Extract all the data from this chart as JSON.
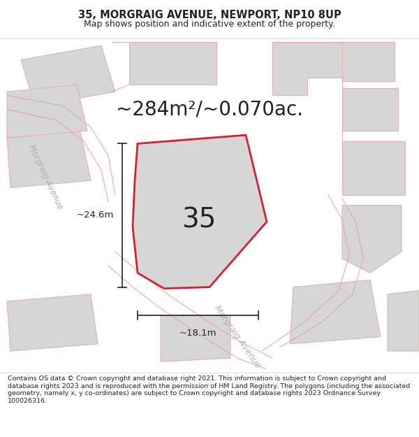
{
  "title_line1": "35, MORGRAIG AVENUE, NEWPORT, NP10 8UP",
  "title_line2": "Map shows position and indicative extent of the property.",
  "area_text": "~284m²/~0.070ac.",
  "property_number": "35",
  "dim_vertical": "~24.6m",
  "dim_horizontal": "~18.1m",
  "street_label_diag": "Morgraig Avenue",
  "street_label_left": "Morgraig Avenue",
  "footer_text": "Contains OS data © Crown copyright and database right 2021. This information is subject to Crown copyright and database rights 2023 and is reproduced with the permission of HM Land Registry. The polygons (including the associated geometry, namely x, y co-ordinates) are subject to Crown copyright and database rights 2023 Ordnance Survey 100026316.",
  "bg_color": "#ffffff",
  "map_bg_color": "#ffffff",
  "plot_fill_color": "#d6d6d6",
  "plot_border_color": "#d42030",
  "neighbor_fill_color": "#d6d6d6",
  "neighbor_border_color": "#e8b0b0",
  "road_line_color": "#e8a0a0",
  "dim_line_color": "#222222",
  "text_color": "#222222",
  "title_color": "#222222",
  "footer_color": "#222222",
  "street_text_color": "#b0b0b0"
}
